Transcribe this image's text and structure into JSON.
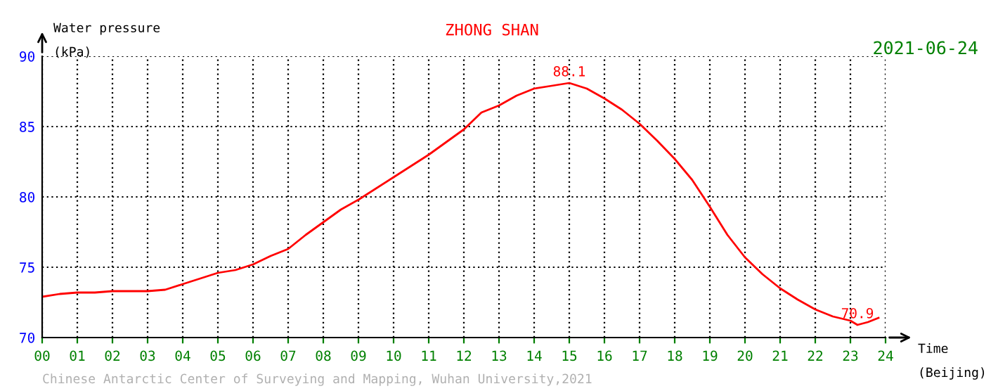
{
  "chart_data": {
    "type": "line",
    "title": "ZHONG SHAN",
    "subtitle": "2021-06-24",
    "ylabel": "Water pressure\n(kPa)",
    "xlabel": "Time\n(Beijing)",
    "annotations": [
      {
        "text": "88.1",
        "x": 15,
        "y": 88.1
      },
      {
        "text": "70.9",
        "x": 23.2,
        "y": 70.9
      },
      "Chinese Antarctic Center of Surveying and Mapping, Wuhan University,2021"
    ],
    "x": [
      0,
      0.5,
      1,
      1.5,
      2,
      3,
      3.5,
      4,
      4.5,
      5,
      5.5,
      6,
      6.5,
      7,
      7.5,
      8,
      8.5,
      9,
      10,
      11,
      12,
      12.5,
      13,
      13.5,
      14,
      14.5,
      15,
      15.5,
      16,
      16.5,
      17,
      17.5,
      18,
      18.5,
      19,
      19.5,
      20,
      20.5,
      21,
      21.5,
      22,
      22.5,
      23,
      23.2,
      23.5,
      23.8
    ],
    "series": [
      {
        "color": "#ff0000",
        "values": [
          72.9,
          73.1,
          73.2,
          73.2,
          73.3,
          73.3,
          73.4,
          73.8,
          74.2,
          74.6,
          74.8,
          75.2,
          75.8,
          76.3,
          77.3,
          78.2,
          79.1,
          79.8,
          81.4,
          83.0,
          84.8,
          86.0,
          86.5,
          87.2,
          87.7,
          87.9,
          88.1,
          87.7,
          87.0,
          86.2,
          85.2,
          84.0,
          82.7,
          81.2,
          79.3,
          77.3,
          75.7,
          74.5,
          73.5,
          72.7,
          72.0,
          71.5,
          71.2,
          70.9,
          71.1,
          71.4
        ]
      }
    ],
    "xlim": [
      0,
      24
    ],
    "ylim": [
      70,
      90
    ],
    "xticks": [
      {
        "value": 0,
        "label": "00"
      },
      {
        "value": 1,
        "label": "01"
      },
      {
        "value": 2,
        "label": "02"
      },
      {
        "value": 3,
        "label": "03"
      },
      {
        "value": 4,
        "label": "04"
      },
      {
        "value": 5,
        "label": "05"
      },
      {
        "value": 6,
        "label": "06"
      },
      {
        "value": 7,
        "label": "07"
      },
      {
        "value": 8,
        "label": "08"
      },
      {
        "value": 9,
        "label": "09"
      },
      10,
      11,
      12,
      13,
      14,
      15,
      16,
      17,
      18,
      19,
      20,
      21,
      22,
      23,
      24
    ],
    "yticks": [
      70,
      75,
      80,
      85,
      90
    ],
    "grid": true,
    "legend": false,
    "marker": "none",
    "line_style": "solid"
  }
}
